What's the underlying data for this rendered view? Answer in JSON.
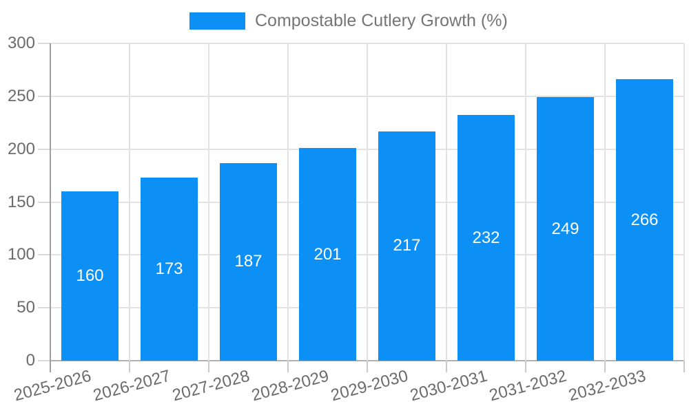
{
  "chart_data": {
    "type": "bar",
    "title": "Compostable Cutlery Growth (%)",
    "categories": [
      "2025-2026",
      "2026-2027",
      "2027-2028",
      "2028-2029",
      "2029-2030",
      "2030-2031",
      "2031-2032",
      "2032-2033"
    ],
    "values": [
      160,
      173,
      187,
      201,
      217,
      232,
      249,
      266
    ],
    "xlabel": "",
    "ylabel": "",
    "ylim": [
      0,
      300
    ],
    "yticks": [
      0,
      50,
      100,
      150,
      200,
      250,
      300
    ],
    "grid": true,
    "legend_position": "top-center",
    "bar_labels_inside": true,
    "colors": {
      "bar": "#0D90F5",
      "value_label": "#ffffff",
      "grid_line": "#e2e2e2",
      "baseline": "#b0b0b0",
      "axis_spine": "#9e9e9e",
      "y_tick_mark": "#d9d9d9",
      "x_tick_mark": "#c9c9c9",
      "tick_label_text": "#6b6b6b",
      "legend_text": "#757575",
      "background": "#ffffff"
    }
  }
}
